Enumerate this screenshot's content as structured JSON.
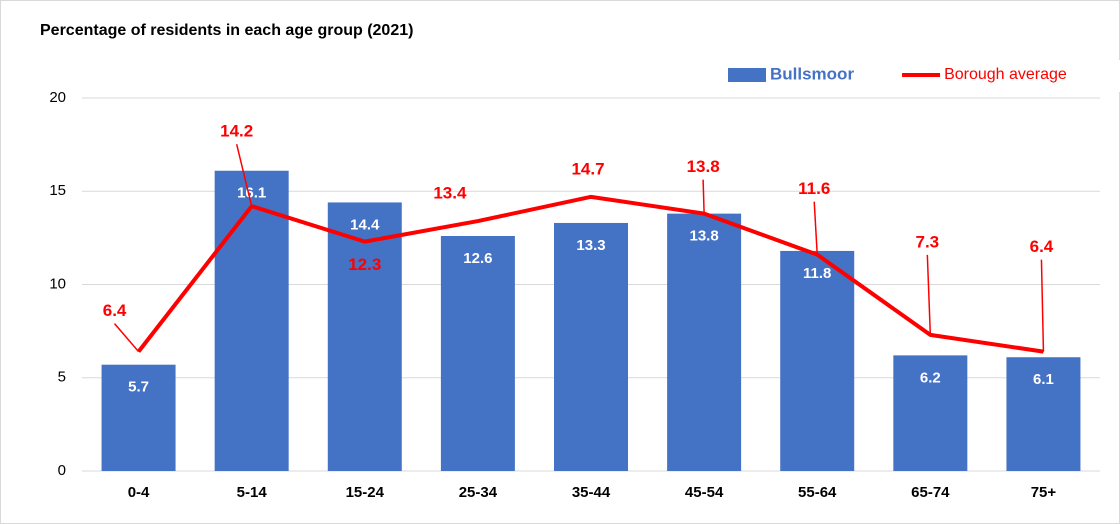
{
  "chart_data": {
    "type": "bar",
    "title": "Percentage of residents in each age group (2021)",
    "categories": [
      "0-4",
      "5-14",
      "15-24",
      "25-34",
      "35-44",
      "45-54",
      "55-64",
      "65-74",
      "75+"
    ],
    "series": [
      {
        "name": "Bullsmoor",
        "type": "bar",
        "color": "#4472c4",
        "values": [
          5.7,
          16.1,
          14.4,
          12.6,
          13.3,
          13.8,
          11.8,
          6.2,
          6.1
        ]
      },
      {
        "name": "Borough average",
        "type": "line",
        "color": "#ff0000",
        "values": [
          6.4,
          14.2,
          12.3,
          13.4,
          14.7,
          13.8,
          11.6,
          7.3,
          6.4
        ]
      }
    ],
    "ylim": [
      0,
      20
    ],
    "yticks": [
      0,
      5,
      10,
      15,
      20
    ],
    "grid": true,
    "legend": "top-right"
  }
}
